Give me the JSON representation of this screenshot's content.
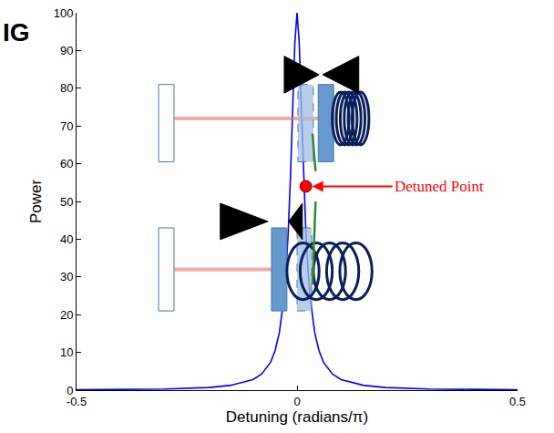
{
  "chart_data": {
    "type": "line",
    "title": "IG",
    "xlabel": "Detuning (radians/π)",
    "ylabel": "Power",
    "x": [
      -0.5,
      -0.4,
      -0.3,
      -0.2,
      -0.15,
      -0.1,
      -0.08,
      -0.06,
      -0.05,
      -0.04,
      -0.03,
      -0.025,
      -0.02,
      -0.015,
      -0.01,
      -0.005,
      0,
      0.005,
      0.01,
      0.015,
      0.02,
      0.025,
      0.03,
      0.04,
      0.05,
      0.06,
      0.08,
      0.1,
      0.15,
      0.2,
      0.3,
      0.4,
      0.5
    ],
    "values": [
      0.1,
      0.2,
      0.3,
      0.7,
      1.3,
      2.8,
      4.3,
      7.4,
      10.4,
      15.3,
      24.3,
      31.6,
      41.9,
      56.2,
      74.3,
      92.0,
      100,
      92.0,
      74.3,
      56.2,
      41.9,
      31.6,
      24.3,
      15.3,
      10.4,
      7.4,
      4.3,
      2.8,
      1.3,
      0.7,
      0.3,
      0.2,
      0.1
    ],
    "color": "#0000ff",
    "xlim": [
      -0.5,
      0.5
    ],
    "ylim": [
      0,
      100
    ],
    "xticks": [
      -0.5,
      0,
      0.5
    ],
    "yticks": [
      0,
      10,
      20,
      30,
      40,
      50,
      60,
      70,
      80,
      90,
      100
    ],
    "grid": false,
    "annotations": [
      {
        "text": "Detuned Point",
        "x": 0.02,
        "y": 54,
        "color": "#ff0000",
        "marker": "circle"
      }
    ]
  }
}
